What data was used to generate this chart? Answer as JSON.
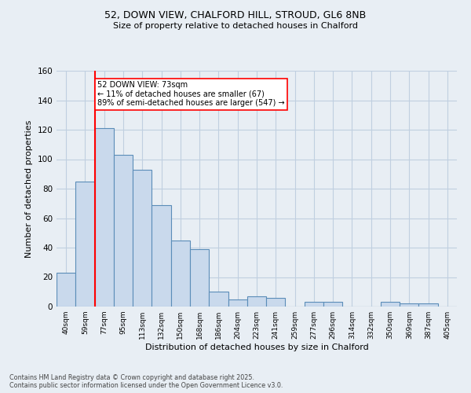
{
  "title1": "52, DOWN VIEW, CHALFORD HILL, STROUD, GL6 8NB",
  "title2": "Size of property relative to detached houses in Chalford",
  "xlabel": "Distribution of detached houses by size in Chalford",
  "ylabel": "Number of detached properties",
  "bin_labels": [
    "40sqm",
    "59sqm",
    "77sqm",
    "95sqm",
    "113sqm",
    "132sqm",
    "150sqm",
    "168sqm",
    "186sqm",
    "204sqm",
    "223sqm",
    "241sqm",
    "259sqm",
    "277sqm",
    "296sqm",
    "314sqm",
    "332sqm",
    "350sqm",
    "369sqm",
    "387sqm",
    "405sqm"
  ],
  "bar_values": [
    23,
    85,
    121,
    103,
    93,
    69,
    45,
    39,
    10,
    5,
    7,
    6,
    0,
    3,
    3,
    0,
    0,
    3,
    2,
    2,
    0
  ],
  "bar_color": "#c9d9ec",
  "bar_edge_color": "#5b8db8",
  "grid_color": "#c0cfe0",
  "background_color": "#e8eef4",
  "red_line_index": 2,
  "annotation_text": "52 DOWN VIEW: 73sqm\n← 11% of detached houses are smaller (67)\n89% of semi-detached houses are larger (547) →",
  "annotation_box_color": "white",
  "annotation_box_edge": "red",
  "ylim": [
    0,
    160
  ],
  "yticks": [
    0,
    20,
    40,
    60,
    80,
    100,
    120,
    140,
    160
  ],
  "footer1": "Contains HM Land Registry data © Crown copyright and database right 2025.",
  "footer2": "Contains public sector information licensed under the Open Government Licence v3.0."
}
